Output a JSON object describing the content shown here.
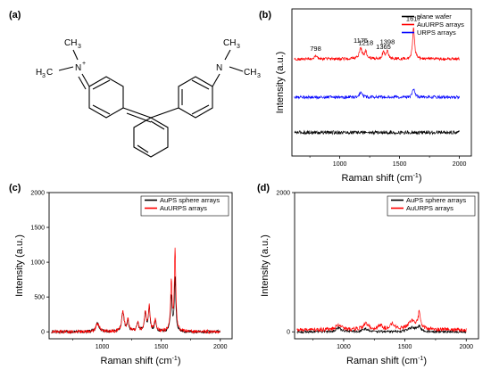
{
  "molecule": {
    "panel_label": "(a)",
    "atoms": {
      "n_left": "N",
      "n_left_charge": "+",
      "n_right": "N",
      "methyl_top_left": "CH",
      "methyl_top_left_sub": "3",
      "methyl_left_prefix": "H",
      "methyl_left_sub": "3",
      "methyl_left_suffix": "C",
      "methyl_top_right": "CH",
      "methyl_top_right_sub": "3",
      "methyl_right": "CH",
      "methyl_right_sub": "3"
    }
  },
  "chart_data": [
    {
      "id": "b",
      "panel_label": "(b)",
      "type": "line",
      "xlabel": "Raman shift (cm",
      "xlabel_sup": "-1",
      "xlabel_close": ")",
      "ylabel": "Intensity (a.u.)",
      "xlim": [
        600,
        2100
      ],
      "xticks": [
        1000,
        1500,
        2000
      ],
      "xtick_labels": [
        "1000",
        "1500",
        "2000"
      ],
      "y_ticks_shown": false,
      "legend_position": "top-right",
      "series": [
        {
          "name": "plane wafer",
          "color": "#000000",
          "offset": 0.16,
          "noise": 0.012,
          "peaks": []
        },
        {
          "name": "AuURPS arrays",
          "color": "#ff0000",
          "offset": 0.66,
          "noise": 0.01,
          "peaks": [
            [
              798,
              0.02,
              10
            ],
            [
              1175,
              0.07,
              14
            ],
            [
              1218,
              0.05,
              10
            ],
            [
              1365,
              0.05,
              10
            ],
            [
              1398,
              0.06,
              10
            ],
            [
              1617,
              0.22,
              9
            ]
          ]
        },
        {
          "name": "URPS arrays",
          "color": "#0000ff",
          "offset": 0.4,
          "noise": 0.01,
          "peaks": [
            [
              1175,
              0.03,
              14
            ],
            [
              1617,
              0.06,
              10
            ]
          ]
        }
      ],
      "annotations": [
        {
          "text": "798",
          "x": 798
        },
        {
          "text": "1175",
          "x": 1175
        },
        {
          "text": "1218",
          "x": 1218
        },
        {
          "text": "1365",
          "x": 1365
        },
        {
          "text": "1398",
          "x": 1398
        },
        {
          "text": "1617",
          "x": 1617
        }
      ]
    },
    {
      "id": "c",
      "panel_label": "(c)",
      "type": "line",
      "xlabel": "Raman shift (cm",
      "xlabel_sup": "-1",
      "xlabel_close": ")",
      "ylabel": "Intensity (a.u.)",
      "xlim": [
        550,
        2100
      ],
      "ylim": [
        -100,
        2000
      ],
      "xticks": [
        1000,
        1500,
        2000
      ],
      "xtick_labels": [
        "1000",
        "1500",
        "2000"
      ],
      "yticks": [
        0,
        500,
        1000,
        1500,
        2000
      ],
      "ytick_labels": [
        "0",
        "500",
        "1000",
        "1500",
        "2000"
      ],
      "legend_position": "top-right",
      "series": [
        {
          "name": "AuPS sphere arrays",
          "color": "#000000",
          "offset": 0,
          "noise": 22,
          "peaks": [
            [
              960,
              120,
              18
            ],
            [
              1175,
              280,
              12
            ],
            [
              1218,
              160,
              9
            ],
            [
              1300,
              120,
              10
            ],
            [
              1365,
              250,
              10
            ],
            [
              1398,
              330,
              9
            ],
            [
              1450,
              150,
              10
            ],
            [
              1585,
              520,
              8
            ],
            [
              1617,
              750,
              7
            ]
          ]
        },
        {
          "name": "AuURPS arrays",
          "color": "#ff0000",
          "offset": 0,
          "noise": 25,
          "peaks": [
            [
              960,
              110,
              18
            ],
            [
              1175,
              290,
              12
            ],
            [
              1218,
              170,
              9
            ],
            [
              1300,
              130,
              10
            ],
            [
              1365,
              270,
              10
            ],
            [
              1398,
              350,
              9
            ],
            [
              1450,
              160,
              10
            ],
            [
              1585,
              700,
              8
            ],
            [
              1617,
              1180,
              7
            ]
          ]
        }
      ]
    },
    {
      "id": "d",
      "panel_label": "(d)",
      "type": "line",
      "xlabel": "Raman shift (cm",
      "xlabel_sup": "-1",
      "xlabel_close": ")",
      "ylabel": "Intensity (a.u.)",
      "xlim": [
        600,
        2100
      ],
      "ylim": [
        -100,
        2000
      ],
      "xticks": [
        1000,
        1500,
        2000
      ],
      "xtick_labels": [
        "1000",
        "1500",
        "2000"
      ],
      "yticks": [
        0,
        2000
      ],
      "ytick_labels": [
        "0",
        "2000"
      ],
      "legend_position": "top-right",
      "series": [
        {
          "name": "AuPS sphere arrays",
          "color": "#000000",
          "offset": 0,
          "noise": 18,
          "peaks": [
            [
              960,
              55,
              25
            ],
            [
              1180,
              40,
              30
            ],
            [
              1560,
              60,
              40
            ],
            [
              1617,
              70,
              12
            ]
          ]
        },
        {
          "name": "AuURPS arrays",
          "color": "#ff0000",
          "offset": 30,
          "noise": 28,
          "peaks": [
            [
              960,
              70,
              25
            ],
            [
              1180,
              90,
              25
            ],
            [
              1300,
              60,
              20
            ],
            [
              1398,
              80,
              20
            ],
            [
              1560,
              130,
              40
            ],
            [
              1617,
              230,
              10
            ]
          ]
        }
      ]
    }
  ]
}
